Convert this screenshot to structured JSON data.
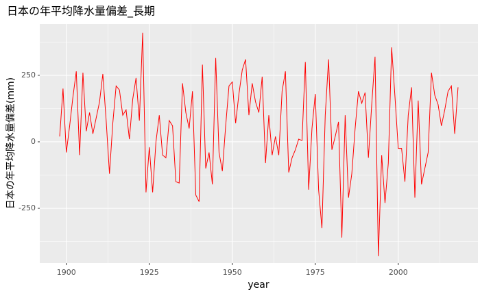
{
  "chart_data": {
    "type": "line",
    "title": "日本の年平均降水量偏差_長期",
    "x_label": "year",
    "y_label": "日本の年平均降水量偏差(mm)",
    "x": [
      1898,
      1899,
      1900,
      1901,
      1902,
      1903,
      1904,
      1905,
      1906,
      1907,
      1908,
      1909,
      1910,
      1911,
      1912,
      1913,
      1914,
      1915,
      1916,
      1917,
      1918,
      1919,
      1920,
      1921,
      1922,
      1923,
      1924,
      1925,
      1926,
      1927,
      1928,
      1929,
      1930,
      1931,
      1932,
      1933,
      1934,
      1935,
      1936,
      1937,
      1938,
      1939,
      1940,
      1941,
      1942,
      1943,
      1944,
      1945,
      1946,
      1947,
      1948,
      1949,
      1950,
      1951,
      1952,
      1953,
      1954,
      1955,
      1956,
      1957,
      1958,
      1959,
      1960,
      1961,
      1962,
      1963,
      1964,
      1965,
      1966,
      1967,
      1968,
      1969,
      1970,
      1971,
      1972,
      1973,
      1974,
      1975,
      1976,
      1977,
      1978,
      1979,
      1980,
      1981,
      1982,
      1983,
      1984,
      1985,
      1986,
      1987,
      1988,
      1989,
      1990,
      1991,
      1992,
      1993,
      1994,
      1995,
      1996,
      1997,
      1998,
      1999,
      2000,
      2001,
      2002,
      2003,
      2004,
      2005,
      2006,
      2007,
      2008,
      2009,
      2010,
      2011,
      2012,
      2013,
      2014,
      2015,
      2016,
      2017,
      2018
    ],
    "series": [
      {
        "name": "deviation",
        "color": "#ff0000",
        "values": [
          20,
          200,
          -40,
          60,
          170,
          265,
          -50,
          260,
          40,
          110,
          30,
          90,
          150,
          255,
          80,
          -120,
          70,
          210,
          195,
          100,
          120,
          10,
          160,
          240,
          80,
          410,
          -190,
          -20,
          -190,
          0,
          100,
          -50,
          -60,
          80,
          60,
          -150,
          -155,
          220,
          110,
          50,
          190,
          -200,
          -225,
          290,
          -100,
          -40,
          -160,
          315,
          -40,
          -110,
          60,
          210,
          225,
          70,
          180,
          270,
          310,
          100,
          220,
          150,
          110,
          245,
          -80,
          100,
          -50,
          20,
          -50,
          190,
          265,
          -115,
          -60,
          -30,
          10,
          5,
          300,
          -180,
          50,
          180,
          -180,
          -325,
          100,
          310,
          -30,
          20,
          75,
          -360,
          100,
          -210,
          -120,
          50,
          190,
          145,
          185,
          -60,
          140,
          320,
          -430,
          -50,
          -230,
          -80,
          355,
          170,
          -25,
          -25,
          -150,
          100,
          205,
          -210,
          155,
          -160,
          -100,
          -40,
          260,
          175,
          140,
          60,
          120,
          190,
          210,
          30,
          205
        ]
      }
    ],
    "xlim": [
      1892,
      2024
    ],
    "xticks": [
      1900,
      1925,
      1950,
      1975,
      2000
    ],
    "ylim": [
      -456,
      443
    ],
    "yticks": [
      -250,
      0,
      250
    ],
    "grid": true
  }
}
